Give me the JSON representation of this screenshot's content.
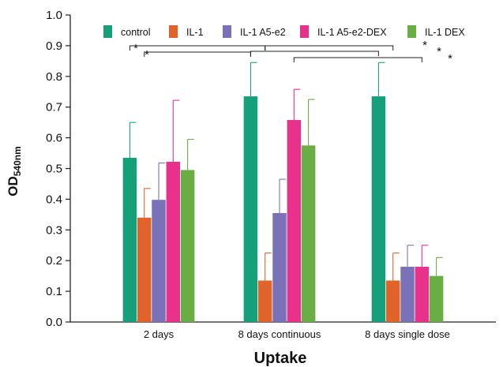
{
  "chart_data": {
    "type": "bar",
    "categories": [
      "2 days",
      "8 days continuous",
      "8 days single dose"
    ],
    "series": [
      {
        "name": "control",
        "color": "#16a07a",
        "values": [
          0.535,
          0.735,
          0.735
        ],
        "errors": [
          0.115,
          0.11,
          0.11
        ]
      },
      {
        "name": "IL-1",
        "color": "#e0642a",
        "values": [
          0.34,
          0.135,
          0.135
        ],
        "errors": [
          0.095,
          0.09,
          0.09
        ]
      },
      {
        "name": "IL-1 A5-e2",
        "color": "#7a72b8",
        "values": [
          0.398,
          0.355,
          0.18
        ],
        "errors": [
          0.12,
          0.11,
          0.07
        ]
      },
      {
        "name": "IL-1 A5-e2-DEX",
        "color": "#e8318a",
        "values": [
          0.522,
          0.658,
          0.18
        ],
        "errors": [
          0.2,
          0.1,
          0.07
        ]
      },
      {
        "name": "IL-1 DEX",
        "color": "#6aad44",
        "values": [
          0.495,
          0.575,
          0.15
        ],
        "errors": [
          0.1,
          0.15,
          0.06
        ]
      }
    ],
    "xlabel": "Uptake",
    "ylabel_main": "OD",
    "ylabel_sub": "540nm",
    "ylim": [
      0,
      1.0
    ],
    "yticks": [
      "0.0",
      "0.1",
      "0.2",
      "0.3",
      "0.4",
      "0.5",
      "0.6",
      "0.7",
      "0.8",
      "0.9",
      "1.0"
    ],
    "significance": [
      {
        "from": "2 days: control",
        "to": "8 days continuous: IL-1",
        "star": "*"
      },
      {
        "from": "2 days: IL-1",
        "to": "8 days continuous: control",
        "star": "*"
      },
      {
        "from": "8 days continuous: IL-1",
        "to": "8 days single dose: IL-1",
        "star": "*"
      },
      {
        "from": "8 days continuous: control",
        "to": "8 days single dose: control",
        "star": "*"
      },
      {
        "from": "8 days continuous: IL-1 A5-e2-DEX",
        "to": "8 days single dose: IL-1 A5-e2-DEX",
        "star": "*"
      }
    ],
    "legend_position": "top"
  }
}
